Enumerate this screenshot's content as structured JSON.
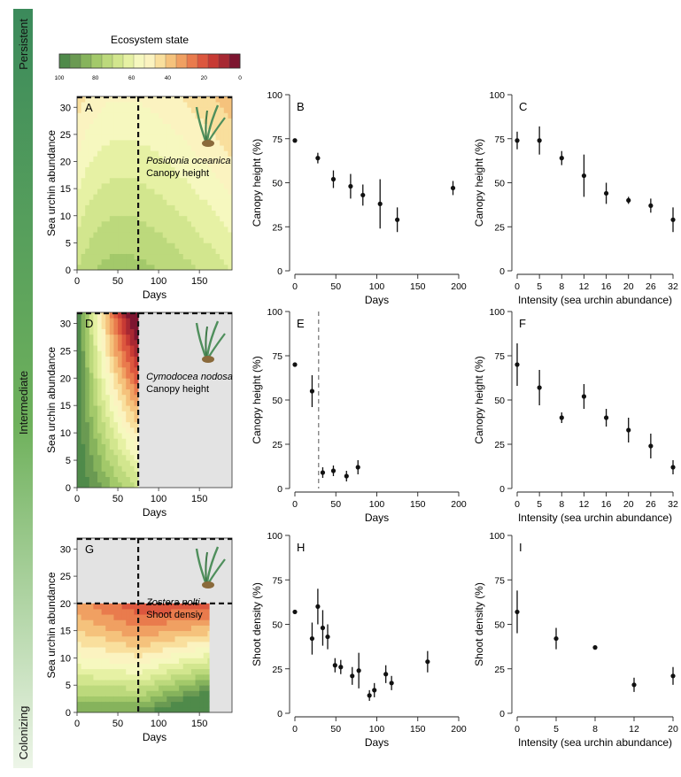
{
  "side_labels": [
    "Persistent",
    "Intermediate",
    "Colonizing"
  ],
  "colors": {
    "seagrass_green": "#4f8f5c",
    "empty_region": "#e3e3e3",
    "contour_stops": [
      "#4f8a4a",
      "#6a9a52",
      "#86b35c",
      "#a3c96a",
      "#bcd97c",
      "#d2e68e",
      "#e6f1a4",
      "#f6f8bf",
      "#fbf3c0",
      "#f9df9d",
      "#f5c27c",
      "#f0a062",
      "#e97b4d",
      "#dc573e",
      "#c73a34",
      "#a72832",
      "#7d1530"
    ]
  },
  "legend": {
    "title": "Ecosystem state",
    "ticks": [
      "100",
      "80",
      "60",
      "40",
      "20",
      "0"
    ]
  },
  "chart_data": [
    {
      "type": "heatmap",
      "panel": "A",
      "species": "Posidonia oceanica",
      "metric": "Canopy height",
      "xlabel": "Days",
      "ylabel": "Sea urchin abundance",
      "xlim": [
        0,
        190
      ],
      "ylim": [
        0,
        32
      ],
      "xticks": [
        "0",
        "50",
        "100",
        "150"
      ],
      "yticks": [
        "0",
        "5",
        "10",
        "15",
        "20",
        "25",
        "30"
      ],
      "threshold_day": 75,
      "data_to_day": 190
    },
    {
      "type": "scatter",
      "panel": "B",
      "xlabel": "Days",
      "ylabel": "Canopy height (%)",
      "xlim": [
        0,
        200
      ],
      "ylim": [
        0,
        100
      ],
      "xticks": [
        "0",
        "50",
        "100",
        "150",
        "200"
      ],
      "yticks": [
        "0",
        "25",
        "50",
        "75",
        "100"
      ],
      "x": [
        0,
        28,
        47,
        68,
        83,
        104,
        125,
        193
      ],
      "y": [
        74,
        64,
        52,
        48,
        43,
        38,
        29,
        47
      ],
      "err": [
        0.5,
        3,
        5,
        7,
        6,
        14,
        7,
        4
      ]
    },
    {
      "type": "scatter",
      "panel": "C",
      "xlabel": "Intensity (sea urchin abundance)",
      "ylabel": "Canopy height (%)",
      "xlim": [
        0,
        7
      ],
      "ylim": [
        0,
        100
      ],
      "categories": [
        "0",
        "5",
        "8",
        "12",
        "16",
        "20",
        "26",
        "32"
      ],
      "yticks": [
        "0",
        "25",
        "50",
        "75",
        "100"
      ],
      "y": [
        74,
        74,
        64,
        54,
        44,
        40,
        37,
        29
      ],
      "err": [
        5,
        8,
        4,
        12,
        6,
        2,
        4,
        7
      ]
    },
    {
      "type": "heatmap",
      "panel": "D",
      "species": "Cymodocea nodosa",
      "metric": "Canopy height",
      "xlabel": "Days",
      "ylabel": "Sea urchin abundance",
      "xlim": [
        0,
        190
      ],
      "ylim": [
        0,
        32
      ],
      "xticks": [
        "0",
        "50",
        "100",
        "150"
      ],
      "yticks": [
        "0",
        "5",
        "10",
        "15",
        "20",
        "25",
        "30"
      ],
      "threshold_day": 75,
      "data_to_day": 75
    },
    {
      "type": "scatter",
      "panel": "E",
      "xlabel": "Days",
      "ylabel": "Canopy height (%)",
      "xlim": [
        0,
        200
      ],
      "ylim": [
        0,
        100
      ],
      "xticks": [
        "0",
        "50",
        "100",
        "150",
        "200"
      ],
      "yticks": [
        "0",
        "25",
        "50",
        "75",
        "100"
      ],
      "threshold_day": 29,
      "x": [
        0,
        21,
        34,
        47,
        63,
        77
      ],
      "y": [
        70,
        55,
        9,
        10,
        7,
        12
      ],
      "err": [
        0.5,
        9,
        3,
        3,
        3,
        4
      ]
    },
    {
      "type": "scatter",
      "panel": "F",
      "xlabel": "Intensity (sea urchin abundance)",
      "ylabel": "Canopy height (%)",
      "xlim": [
        0,
        7
      ],
      "ylim": [
        0,
        100
      ],
      "categories": [
        "0",
        "5",
        "8",
        "12",
        "16",
        "20",
        "26",
        "32"
      ],
      "yticks": [
        "0",
        "25",
        "50",
        "75",
        "100"
      ],
      "y": [
        70,
        57,
        40,
        52,
        40,
        33,
        24,
        12
      ],
      "err": [
        12,
        10,
        3,
        7,
        5,
        7,
        7,
        4
      ]
    },
    {
      "type": "heatmap",
      "panel": "G",
      "species": "Zostera nolti",
      "metric": "Shoot densiy",
      "xlabel": "Days",
      "ylabel": "Sea urchin abundance",
      "xlim": [
        0,
        190
      ],
      "ylim": [
        0,
        32
      ],
      "xticks": [
        "0",
        "50",
        "100",
        "150"
      ],
      "yticks": [
        "0",
        "5",
        "10",
        "15",
        "20",
        "25",
        "30"
      ],
      "threshold_day": 75,
      "threshold_abundance": 20,
      "data_to_day": 162
    },
    {
      "type": "scatter",
      "panel": "H",
      "xlabel": "Days",
      "ylabel": "Shoot density (%)",
      "xlim": [
        0,
        200
      ],
      "ylim": [
        0,
        100
      ],
      "xticks": [
        "0",
        "50",
        "100",
        "150",
        "200"
      ],
      "yticks": [
        "0",
        "25",
        "50",
        "75",
        "100"
      ],
      "x": [
        0,
        21,
        28,
        34,
        40,
        49,
        56,
        70,
        78,
        91,
        97,
        111,
        118,
        162
      ],
      "y": [
        57,
        42,
        60,
        48,
        43,
        27,
        26,
        21,
        24,
        10,
        13,
        22,
        17,
        29
      ],
      "err": [
        0.5,
        9,
        10,
        10,
        7,
        4,
        4,
        5,
        10,
        3,
        4,
        5,
        4,
        6
      ]
    },
    {
      "type": "scatter",
      "panel": "I",
      "xlabel": "Intensity (sea urchin abundance)",
      "ylabel": "Shoot density (%)",
      "xlim": [
        0,
        4
      ],
      "ylim": [
        0,
        100
      ],
      "categories": [
        "0",
        "5",
        "8",
        "12",
        "20"
      ],
      "yticks": [
        "0",
        "25",
        "50",
        "75",
        "100"
      ],
      "y": [
        57,
        42,
        37,
        16,
        21
      ],
      "err": [
        12,
        6,
        0.5,
        4,
        5
      ]
    }
  ]
}
